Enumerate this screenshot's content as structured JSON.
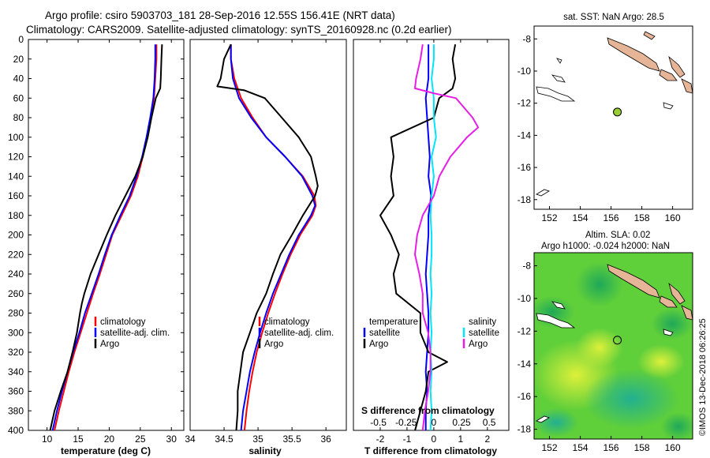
{
  "header": {
    "line1": "Argo profile: csiro 5903703_181 28-Sep-2016 12.55S 156.41E (NRT data)",
    "line2": "Climatology: CARS2009. Satellite-adjusted climatology: synTS_20160928.nc (0.2d earlier)"
  },
  "colors": {
    "climatology": "#ff0000",
    "satellite": "#0000ff",
    "argo": "#000000",
    "sat_salinity": "#00e5ff",
    "argo_salinity": "#e61ee6",
    "land": "#e6b496",
    "float_marker": "#9acd32"
  },
  "depth_ticks": [
    0,
    20,
    40,
    60,
    80,
    100,
    120,
    140,
    160,
    180,
    200,
    220,
    240,
    260,
    280,
    300,
    320,
    340,
    360,
    380,
    400
  ],
  "chart_data": [
    {
      "type": "line",
      "id": "temperature",
      "xlabel": "temperature (deg C)",
      "ylabel": "depth",
      "xlim": [
        7,
        32
      ],
      "ylim": [
        0,
        400
      ],
      "xticks": [
        10,
        15,
        20,
        25,
        30
      ],
      "legend": [
        "climatology",
        "satellite-adj. clim.",
        "Argo"
      ],
      "series": [
        {
          "name": "climatology",
          "color": "#ff0000",
          "depth": [
            5,
            20,
            40,
            60,
            80,
            100,
            120,
            140,
            160,
            180,
            200,
            220,
            240,
            260,
            280,
            300,
            320,
            340,
            360,
            380,
            400
          ],
          "values": [
            27.6,
            27.6,
            27.4,
            27.2,
            26.7,
            26.1,
            25.4,
            24.6,
            23.5,
            22.0,
            20.5,
            19.5,
            18.5,
            17.4,
            16.4,
            15.4,
            14.4,
            13.5,
            12.7,
            11.9,
            11.2
          ]
        },
        {
          "name": "satellite-adj. clim.",
          "color": "#0000ff",
          "depth": [
            5,
            20,
            40,
            60,
            80,
            100,
            120,
            140,
            160,
            180,
            200,
            220,
            240,
            260,
            280,
            300,
            320,
            340,
            360,
            380,
            400
          ],
          "values": [
            27.4,
            27.4,
            27.3,
            27.1,
            26.6,
            26.0,
            25.3,
            24.4,
            23.3,
            21.8,
            20.4,
            19.3,
            18.3,
            17.2,
            16.1,
            15.2,
            14.2,
            13.3,
            12.4,
            11.6,
            10.9
          ]
        },
        {
          "name": "Argo",
          "color": "#000000",
          "depth": [
            5,
            20,
            40,
            50,
            60,
            80,
            100,
            120,
            140,
            160,
            170,
            180,
            200,
            220,
            240,
            260,
            270,
            280,
            300,
            320,
            340,
            360,
            380,
            400
          ],
          "values": [
            28.5,
            28.4,
            28.3,
            28.2,
            27.5,
            26.8,
            26.2,
            25.4,
            24.2,
            22.6,
            21.8,
            21.0,
            19.6,
            18.3,
            17.0,
            16.0,
            15.6,
            15.3,
            14.8,
            14.1,
            13.3,
            12.2,
            11.2,
            10.5
          ]
        }
      ]
    },
    {
      "type": "line",
      "id": "salinity",
      "xlabel": "salinity",
      "ylabel": "depth",
      "xlim": [
        34,
        36.3
      ],
      "ylim": [
        0,
        400
      ],
      "xticks": [
        34,
        34.5,
        35,
        35.5,
        36
      ],
      "xtick_labels": [
        "34",
        "34.5",
        "35",
        "35.5",
        "36"
      ],
      "legend": [
        "climatology",
        "satellite-adj. clim.",
        "Argo"
      ],
      "series": [
        {
          "name": "climatology",
          "color": "#ff0000",
          "depth": [
            5,
            20,
            40,
            60,
            80,
            100,
            120,
            140,
            160,
            170,
            180,
            200,
            220,
            240,
            260,
            280,
            300,
            320,
            340,
            360,
            380,
            400
          ],
          "values": [
            34.6,
            34.6,
            34.65,
            34.75,
            34.92,
            35.12,
            35.4,
            35.66,
            35.83,
            35.85,
            35.8,
            35.62,
            35.48,
            35.36,
            35.25,
            35.15,
            35.06,
            34.98,
            34.92,
            34.87,
            34.83,
            34.8
          ]
        },
        {
          "name": "satellite-adj. clim.",
          "color": "#0000ff",
          "depth": [
            5,
            20,
            40,
            60,
            80,
            100,
            120,
            140,
            160,
            170,
            180,
            200,
            220,
            240,
            260,
            280,
            300,
            320,
            340,
            360,
            380,
            400
          ],
          "values": [
            34.6,
            34.6,
            34.63,
            34.72,
            34.9,
            35.12,
            35.4,
            35.65,
            35.8,
            35.84,
            35.78,
            35.6,
            35.46,
            35.34,
            35.22,
            35.12,
            35.03,
            34.95,
            34.88,
            34.83,
            34.78,
            34.75
          ]
        },
        {
          "name": "Argo",
          "color": "#000000",
          "depth": [
            5,
            20,
            40,
            48,
            52,
            60,
            80,
            100,
            120,
            140,
            150,
            160,
            180,
            200,
            220,
            240,
            260,
            280,
            300,
            320,
            340,
            360,
            380,
            400
          ],
          "values": [
            34.6,
            34.5,
            34.45,
            34.4,
            34.8,
            35.1,
            35.35,
            35.6,
            35.78,
            35.85,
            35.88,
            35.84,
            35.66,
            35.5,
            35.33,
            35.22,
            35.12,
            34.98,
            34.88,
            34.78,
            34.74,
            34.7,
            34.7,
            34.68
          ]
        }
      ]
    },
    {
      "type": "line",
      "id": "difference",
      "xlabel": "T difference from climatology",
      "x2label": "S difference from climatology",
      "xlim": [
        -3,
        2.8
      ],
      "ylim": [
        0,
        400
      ],
      "xticks": [
        -2,
        -1,
        0,
        1,
        2
      ],
      "xtick_labels": [
        "-2",
        "-1",
        "0",
        "1",
        "2"
      ],
      "x2ticks": [
        -0.5,
        -0.25,
        0,
        0.25,
        0.5
      ],
      "x2tick_labels": [
        "-0.5",
        "-0.25",
        "0",
        "0.25",
        "0.5"
      ],
      "x2lim": [
        -0.725,
        0.677
      ],
      "legend_temperature_title": "temperature",
      "legend_salinity_title": "salinity",
      "legend": [
        "satellite",
        "Argo",
        "satellite",
        "Argo"
      ],
      "series": [
        {
          "name": "satellite (temperature)",
          "color": "#0000ff",
          "axis": "T",
          "depth": [
            5,
            40,
            60,
            80,
            100,
            120,
            140,
            160,
            180,
            200,
            220,
            240,
            260,
            280,
            300,
            320,
            340,
            360,
            380,
            400
          ],
          "values": [
            -0.2,
            -0.2,
            -0.3,
            -0.25,
            -0.2,
            -0.15,
            -0.2,
            -0.1,
            -0.2,
            -0.2,
            -0.25,
            -0.3,
            -0.25,
            -0.2,
            -0.2,
            -0.25,
            -0.3,
            -0.25,
            -0.3,
            -0.3
          ]
        },
        {
          "name": "Argo (temperature)",
          "color": "#000000",
          "axis": "T",
          "depth": [
            5,
            20,
            40,
            50,
            60,
            80,
            100,
            120,
            140,
            160,
            180,
            200,
            220,
            240,
            260,
            280,
            300,
            320,
            330,
            340,
            360,
            380,
            400
          ],
          "values": [
            0.8,
            0.7,
            0.8,
            0.7,
            0.2,
            0.0,
            -1.6,
            -1.5,
            -1.6,
            -1.5,
            -2.0,
            -1.6,
            -1.3,
            -1.5,
            -1.4,
            -0.5,
            -0.5,
            -0.2,
            0.5,
            -0.2,
            -0.3,
            -0.5,
            -0.7
          ]
        },
        {
          "name": "satellite (salinity)",
          "color": "#00e5ff",
          "axis": "S",
          "depth": [
            5,
            20,
            40,
            60,
            80,
            100,
            120,
            140,
            160,
            180,
            200,
            220,
            240,
            260,
            280,
            300,
            320,
            340,
            360,
            380,
            400
          ],
          "values": [
            0.0,
            0.0,
            -0.02,
            0.0,
            0.0,
            0.02,
            -0.02,
            0.0,
            -0.02,
            -0.03,
            -0.02,
            -0.02,
            -0.03,
            -0.02,
            -0.03,
            -0.02,
            -0.03,
            -0.02,
            -0.03,
            -0.02,
            -0.03
          ]
        },
        {
          "name": "Argo (salinity)",
          "color": "#e61ee6",
          "axis": "S",
          "depth": [
            5,
            20,
            40,
            50,
            55,
            60,
            80,
            90,
            100,
            120,
            140,
            160,
            180,
            200,
            220,
            240,
            260,
            280,
            300,
            320,
            340,
            360,
            380,
            400
          ],
          "values": [
            -0.1,
            -0.12,
            -0.16,
            -0.17,
            0.0,
            0.2,
            0.35,
            0.4,
            0.3,
            0.15,
            0.05,
            0.0,
            -0.1,
            -0.15,
            -0.17,
            -0.13,
            -0.1,
            -0.1,
            -0.05,
            -0.03,
            -0.03,
            -0.05,
            -0.08,
            -0.1
          ]
        }
      ]
    }
  ],
  "map1": {
    "title": "sat. SST: NaN Argo: 28.5",
    "lon_range": [
      151,
      161.3
    ],
    "lat_range": [
      -18.6,
      -7.2
    ],
    "xticks": [
      152,
      154,
      156,
      158,
      160
    ],
    "yticks": [
      -8,
      -10,
      -12,
      -14,
      -16,
      -18
    ],
    "float_position": {
      "lon": 156.41,
      "lat": -12.55
    }
  },
  "map2": {
    "title_line1": "Altim. SLA: 0.02",
    "title_line2": "Argo h1000: -0.024 h2000: NaN",
    "lon_range": [
      151,
      161.3
    ],
    "lat_range": [
      -18.6,
      -7.2
    ],
    "xticks": [
      152,
      154,
      156,
      158,
      160
    ],
    "yticks": [
      -8,
      -10,
      -12,
      -14,
      -16,
      -18
    ],
    "float_position": {
      "lon": 156.41,
      "lat": -12.55
    }
  },
  "credit": "©IMOS 13-Dec-2018 06:26:25"
}
